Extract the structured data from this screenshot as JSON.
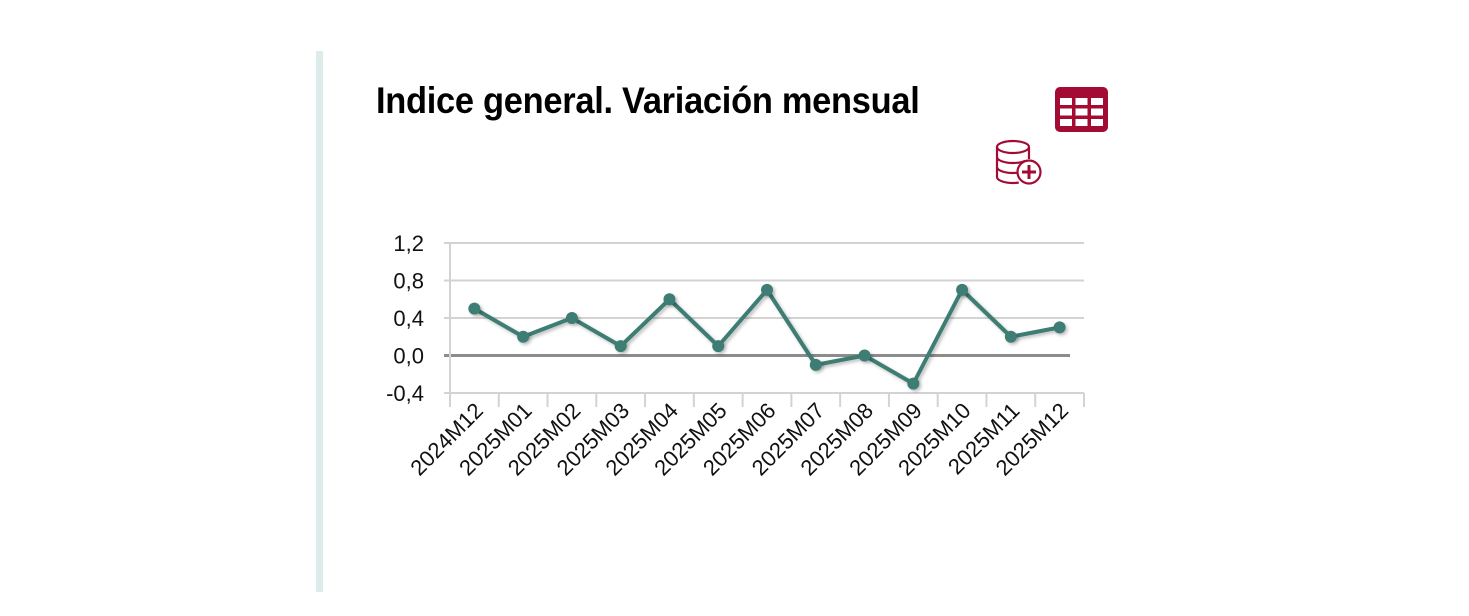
{
  "panel": {
    "title": "Indice general. Variación mensual",
    "accent_color": "#a30b35",
    "strip_color": "#dcecea"
  },
  "toolbar": {
    "table_icon": "table-icon",
    "add_database_icon": "database-plus-icon"
  },
  "chart_data": {
    "type": "line",
    "title": "Indice general. Variación mensual",
    "xlabel": "",
    "ylabel": "",
    "categories": [
      "2024M12",
      "2025M01",
      "2025M02",
      "2025M03",
      "2025M04",
      "2025M05",
      "2025M06",
      "2025M07",
      "2025M08",
      "2025M09",
      "2025M10",
      "2025M11",
      "2025M12"
    ],
    "series": [
      {
        "name": "Indice general",
        "color": "#3d7d73",
        "values": [
          0.5,
          0.2,
          0.4,
          0.1,
          0.6,
          0.1,
          0.7,
          -0.1,
          0.0,
          -0.3,
          0.7,
          0.2,
          0.3
        ]
      }
    ],
    "ylim": [
      -0.4,
      1.2
    ],
    "yticks": [
      "1,2",
      "0,8",
      "0,4",
      "0,0",
      "-0,4"
    ],
    "ytick_values": [
      1.2,
      0.8,
      0.4,
      0.0,
      -0.4
    ],
    "grid": true,
    "legend": "none"
  }
}
